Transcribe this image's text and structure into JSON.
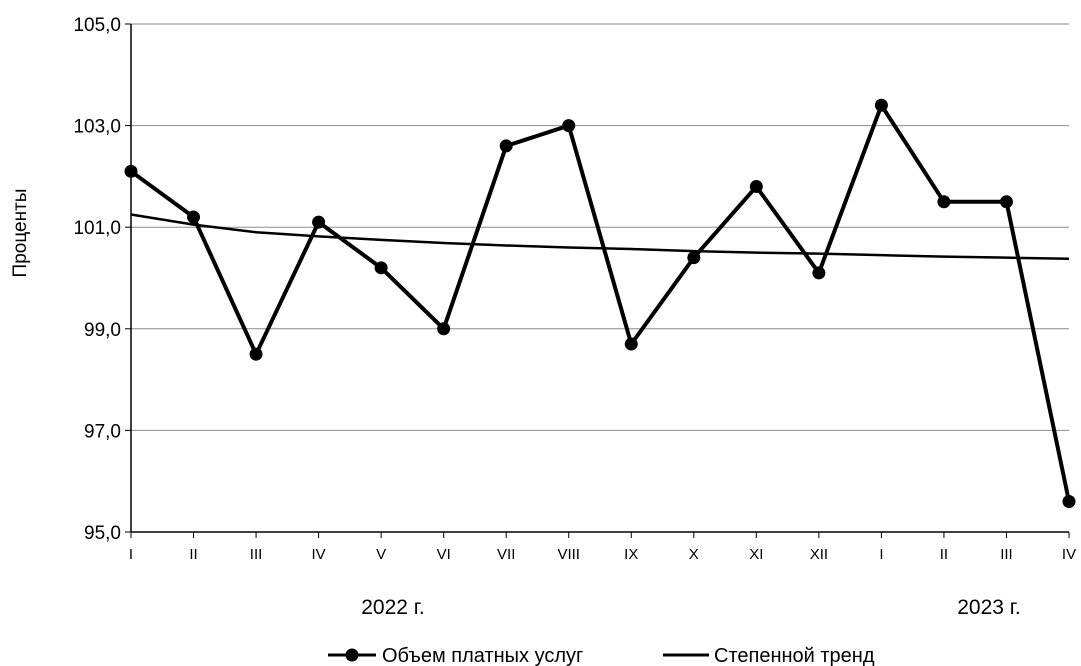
{
  "chart_data": {
    "type": "line",
    "ylabel": "Проценты",
    "ylim": [
      95,
      105
    ],
    "y_ticks": [
      "95,0",
      "97,0",
      "99,0",
      "101,0",
      "103,0",
      "105,0"
    ],
    "categories": [
      "I",
      "II",
      "III",
      "IV",
      "V",
      "VI",
      "VII",
      "VIII",
      "IX",
      "X",
      "XI",
      "XII",
      "I",
      "II",
      "III",
      "IV"
    ],
    "category_groups": [
      {
        "label": "2022 г.",
        "start": 0,
        "end": 11
      },
      {
        "label": "2023 г.",
        "start": 12,
        "end": 15
      }
    ],
    "grid": "horizontal",
    "legend_position": "bottom",
    "series": [
      {
        "name": "Объем платных услуг",
        "color": "#000000",
        "marker": "circle",
        "values": [
          102.1,
          101.2,
          98.5,
          101.1,
          100.2,
          99.0,
          102.6,
          103.0,
          98.7,
          100.4,
          101.8,
          100.1,
          103.4,
          101.5,
          101.5,
          95.6
        ]
      },
      {
        "name": "Степенной тренд",
        "color": "#000000",
        "marker": "none",
        "trend_type": "power",
        "values": [
          101.25,
          101.05,
          100.9,
          100.82,
          100.75,
          100.69,
          100.64,
          100.6,
          100.57,
          100.53,
          100.5,
          100.48,
          100.45,
          100.42,
          100.4,
          100.38
        ]
      }
    ]
  }
}
